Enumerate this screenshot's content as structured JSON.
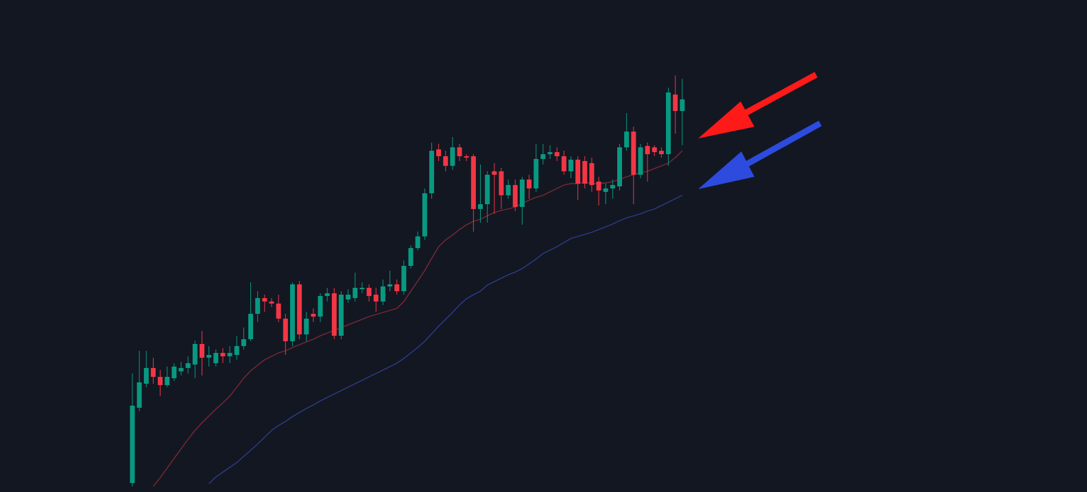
{
  "chart_data": {
    "type": "candlestick",
    "ylim": [
      0,
      718
    ],
    "up_color": "#089981",
    "down_color": "#f23645",
    "open": [
      13,
      123,
      158,
      181,
      168,
      156,
      166,
      176,
      181,
      186,
      216,
      196,
      188,
      203,
      198,
      200,
      213,
      223,
      260,
      283,
      278,
      275,
      253,
      220,
      303,
      230,
      260,
      256,
      286,
      290,
      228,
      281,
      283,
      296,
      298,
      288,
      278,
      300,
      303,
      293,
      330,
      356,
      373,
      436,
      500,
      490,
      476,
      503,
      490,
      490,
      413,
      420,
      468,
      468,
      433,
      448,
      416,
      456,
      443,
      486,
      493,
      496,
      490,
      468,
      485,
      483,
      480,
      453,
      438,
      443,
      446,
      503,
      526,
      463,
      505,
      503,
      498,
      493,
      580,
      556
    ],
    "high": [
      173,
      206,
      206,
      196,
      178,
      183,
      188,
      190,
      198,
      221,
      235,
      213,
      208,
      210,
      213,
      228,
      240,
      306,
      293,
      288,
      283,
      288,
      260,
      306,
      308,
      263,
      268,
      290,
      298,
      298,
      293,
      296,
      320,
      306,
      303,
      298,
      310,
      323,
      310,
      338,
      360,
      380,
      443,
      510,
      508,
      498,
      518,
      508,
      493,
      493,
      478,
      468,
      480,
      473,
      456,
      456,
      460,
      463,
      508,
      508,
      506,
      503,
      498,
      490,
      490,
      490,
      488,
      460,
      450,
      456,
      508,
      553,
      533,
      508,
      510,
      506,
      503,
      590,
      608,
      603
    ],
    "low": [
      8,
      118,
      153,
      158,
      140,
      153,
      162,
      170,
      173,
      166,
      170,
      183,
      183,
      188,
      188,
      193,
      208,
      220,
      248,
      263,
      270,
      248,
      200,
      213,
      223,
      220,
      248,
      248,
      278,
      223,
      223,
      276,
      278,
      290,
      278,
      263,
      273,
      293,
      288,
      288,
      326,
      353,
      368,
      428,
      483,
      468,
      470,
      483,
      483,
      380,
      393,
      393,
      406,
      413,
      428,
      410,
      390,
      428,
      438,
      478,
      486,
      483,
      463,
      458,
      426,
      443,
      438,
      418,
      420,
      428,
      440,
      498,
      420,
      458,
      453,
      490,
      488,
      476,
      523,
      506
    ],
    "close": [
      126,
      160,
      181,
      168,
      156,
      168,
      183,
      181,
      188,
      216,
      196,
      200,
      203,
      198,
      203,
      213,
      223,
      260,
      283,
      278,
      275,
      253,
      220,
      303,
      230,
      253,
      256,
      286,
      290,
      228,
      288,
      288,
      298,
      298,
      286,
      278,
      300,
      303,
      293,
      330,
      356,
      373,
      436,
      498,
      490,
      476,
      503,
      490,
      488,
      413,
      420,
      463,
      463,
      433,
      448,
      416,
      456,
      443,
      486,
      493,
      496,
      490,
      468,
      485,
      450,
      450,
      448,
      440,
      443,
      448,
      503,
      526,
      463,
      503,
      493,
      496,
      493,
      583,
      556,
      573
    ],
    "series": [
      {
        "color": "#7a2a33",
        "values": [
          null,
          null,
          null,
          8,
          21,
          35,
          49,
          63,
          77,
          90,
          101,
          111,
          121,
          130,
          140,
          153,
          166,
          177,
          185,
          193,
          198,
          203,
          206,
          211,
          215,
          219,
          223,
          228,
          232,
          236,
          240,
          244,
          248,
          252,
          256,
          259,
          262,
          265,
          268,
          278,
          293,
          308,
          323,
          341,
          358,
          368,
          375,
          383,
          390,
          395,
          398,
          403,
          408,
          411,
          413,
          416,
          421,
          426,
          430,
          433,
          438,
          443,
          448,
          450,
          450,
          452,
          450,
          450,
          451,
          453,
          456,
          460,
          463,
          466,
          468,
          472,
          476,
          480,
          488,
          498
        ]
      },
      {
        "color": "#2b3d8a",
        "values": [
          null,
          null,
          null,
          null,
          null,
          null,
          null,
          null,
          null,
          null,
          null,
          12,
          22,
          29,
          36,
          43,
          52,
          61,
          70,
          80,
          90,
          97,
          103,
          110,
          116,
          122,
          127,
          133,
          138,
          143,
          148,
          153,
          158,
          163,
          168,
          173,
          178,
          183,
          188,
          195,
          203,
          211,
          220,
          231,
          242,
          252,
          262,
          273,
          282,
          288,
          293,
          302,
          307,
          312,
          317,
          321,
          326,
          333,
          340,
          348,
          353,
          358,
          364,
          370,
          373,
          376,
          379,
          383,
          387,
          391,
          396,
          400,
          403,
          406,
          410,
          413,
          418,
          423,
          428,
          433
        ]
      }
    ]
  }
}
